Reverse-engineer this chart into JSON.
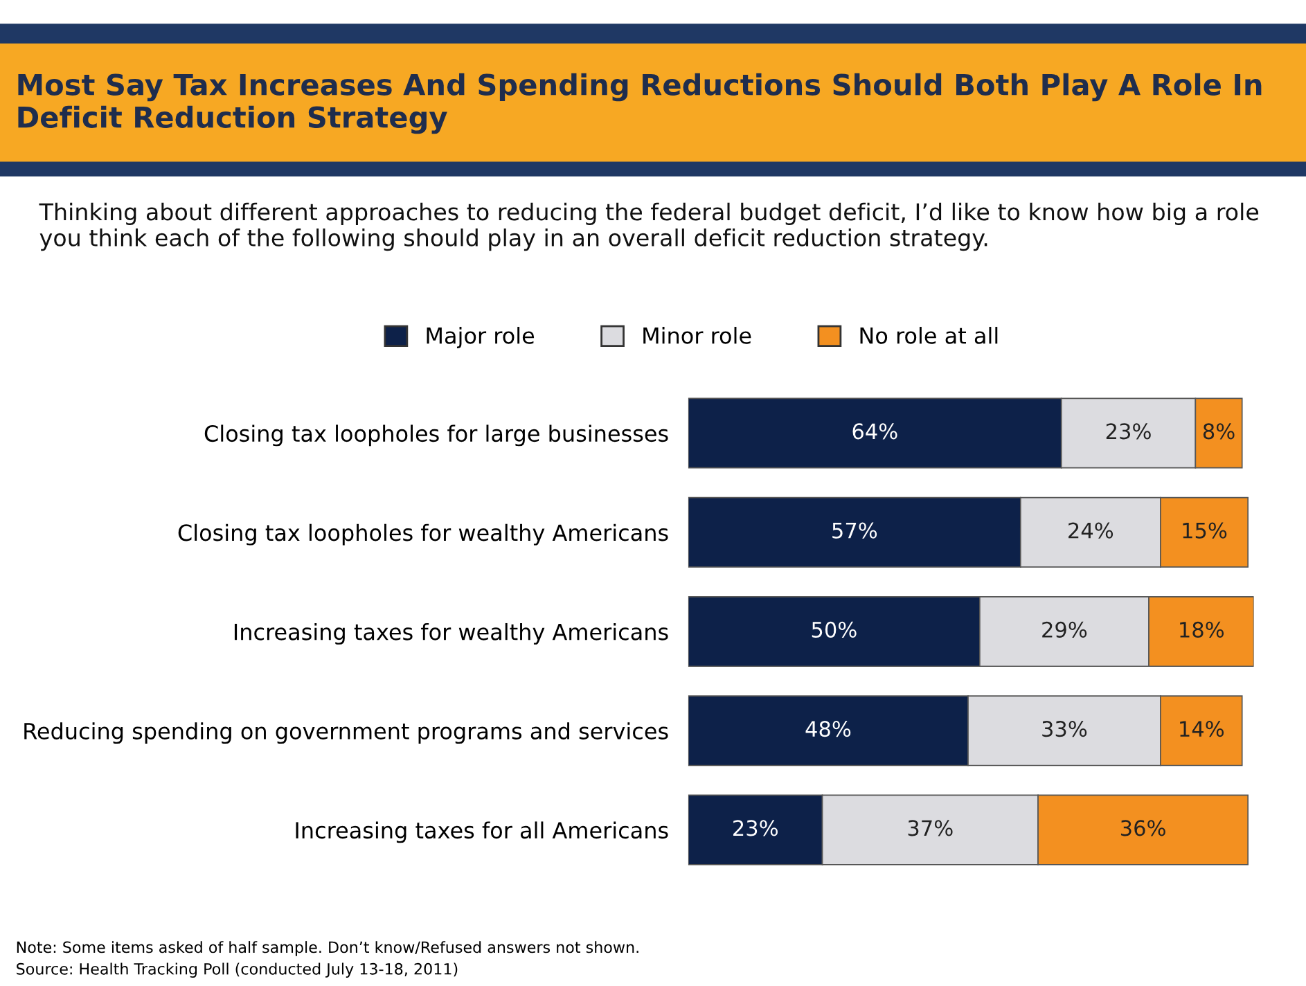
{
  "chart_data": {
    "type": "bar",
    "orientation": "horizontal",
    "stacked": true,
    "title": "Most Say Tax Increases And Spending Reductions Should Both Play A Role In Deficit Reduction Strategy",
    "subtitle": "Thinking about different approaches to reducing the federal budget deficit, I’d like to know how big a role you think each of the following should play in an overall deficit reduction strategy.",
    "categories": [
      "Closing tax loopholes for large businesses",
      "Closing tax loopholes for wealthy Americans",
      "Increasing taxes for wealthy Americans",
      "Reducing spending on government programs and services",
      "Increasing taxes for all Americans"
    ],
    "series": [
      {
        "name": "Major role",
        "color": "#0d2149",
        "values": [
          64,
          57,
          50,
          48,
          23
        ],
        "value_labels": [
          "64%",
          "57%",
          "50%",
          "48%",
          "23%"
        ]
      },
      {
        "name": "Minor role",
        "color": "#dcdce0",
        "values": [
          23,
          24,
          29,
          33,
          37
        ],
        "value_labels": [
          "23%",
          "24%",
          "29%",
          "33%",
          "37%"
        ]
      },
      {
        "name": "No role at all",
        "color": "#f39020",
        "values": [
          8,
          15,
          18,
          14,
          36
        ],
        "value_labels": [
          "8%",
          "15%",
          "18%",
          "14%",
          "36%"
        ]
      }
    ],
    "legend": "top",
    "grid": false,
    "annotations": [
      "Note: Some items asked of half sample. Don’t know/Refused answers not shown.",
      "Source: Health Tracking Poll (conducted July 13-18, 2011)"
    ]
  }
}
